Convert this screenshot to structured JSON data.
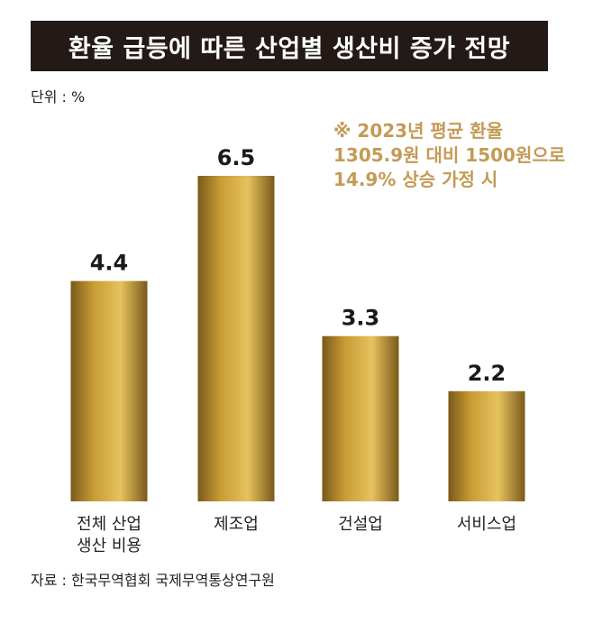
{
  "header": {
    "title": "환율 급등에 따른 산업별 생산비 증가 전망"
  },
  "unit_label": "단위 : %",
  "note_lines": [
    "※ 2023년 평균 환율",
    "1305.9원 대비 1500원으로",
    "14.9% 상승 가정 시"
  ],
  "source": "자료 : 한국무역협회 국제무역통상연구원",
  "colors": {
    "title_bg": "#231a17",
    "note_text": "#c49a55",
    "bar_light": "#e6c25e",
    "bar_mid": "#c99c35",
    "bar_dark": "#7a5a1a"
  },
  "chart_data": {
    "type": "bar",
    "title": "환율 급등에 따른 산업별 생산비 증가 전망",
    "ylabel": "단위 : %",
    "xlabel": "",
    "ylim": [
      0,
      6.5
    ],
    "grid": false,
    "categories": [
      [
        "전체 산업",
        "생산 비용"
      ],
      [
        "제조업"
      ],
      [
        "건설업"
      ],
      [
        "서비스업"
      ]
    ],
    "values": [
      4.4,
      6.5,
      3.3,
      2.2
    ],
    "value_labels": [
      "4.4",
      "6.5",
      "3.3",
      "2.2"
    ]
  }
}
